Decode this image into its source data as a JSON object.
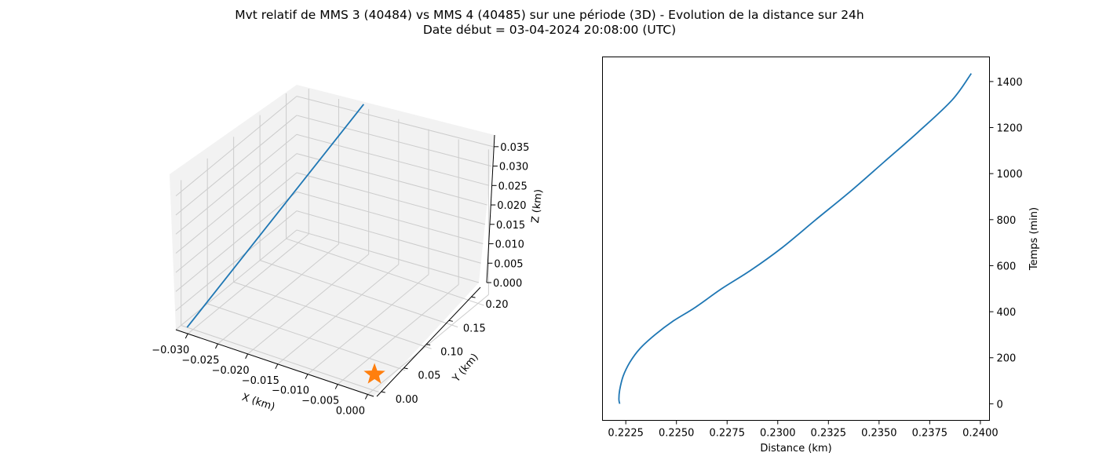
{
  "figure": {
    "title_line1": "Mvt relatif de MMS 3 (40484) vs MMS 4 (40485) sur une période (3D) - Evolution de la distance sur 24h",
    "title_line2": "Date début = 03-04-2024 20:08:00 (UTC)"
  },
  "colors": {
    "line": "#1f77b4",
    "marker": "#ff7f0e",
    "pane": "#f2f2f2",
    "grid": "#cccccc"
  },
  "chart_data": [
    {
      "type": "line3d",
      "xlabel": "X (km)",
      "ylabel": "Y (km)",
      "zlabel": "Z (km)",
      "x_ticks": [
        "−0.030",
        "−0.025",
        "−0.020",
        "−0.015",
        "−0.010",
        "−0.005",
        "0.000"
      ],
      "y_ticks": [
        "0.00",
        "0.05",
        "0.10",
        "0.15",
        "0.20"
      ],
      "z_ticks": [
        "0.000",
        "0.005",
        "0.010",
        "0.015",
        "0.020",
        "0.025",
        "0.030",
        "0.035"
      ],
      "xlim": [
        -0.032,
        0.001
      ],
      "ylim": [
        -0.01,
        0.22
      ],
      "zlim": [
        0,
        0.038
      ],
      "series": [
        {
          "x": [
            -0.031,
            -0.021
          ],
          "y": [
            0.0,
            0.222
          ],
          "z": [
            0.0,
            0.0385
          ]
        }
      ],
      "marker": {
        "shape": "star",
        "x": 0.0,
        "y": 0.0,
        "z": 0.0
      }
    },
    {
      "type": "line",
      "xlabel": "Distance (km)",
      "ylabel": "Temps (min)",
      "yaxis_position": "right",
      "x_ticks": [
        "0.2225",
        "0.2250",
        "0.2275",
        "0.2300",
        "0.2325",
        "0.2350",
        "0.2375",
        "0.2400"
      ],
      "y_ticks": [
        "0",
        "200",
        "400",
        "600",
        "800",
        "1000",
        "1200",
        "1400"
      ],
      "xlim": [
        0.22135,
        0.24045
      ],
      "ylim": [
        -72,
        1507
      ],
      "series": [
        {
          "x": [
            0.2222,
            0.22216,
            0.2222,
            0.22237,
            0.2227,
            0.2232,
            0.22394,
            0.22485,
            0.22595,
            0.22723,
            0.22867,
            0.23024,
            0.23188,
            0.23355,
            0.23524,
            0.23692,
            0.23861,
            0.23955
          ],
          "y": [
            0,
            20,
            60,
            120,
            180,
            240,
            300,
            360,
            420,
            500,
            580,
            680,
            800,
            920,
            1050,
            1180,
            1320,
            1435
          ]
        }
      ]
    }
  ]
}
